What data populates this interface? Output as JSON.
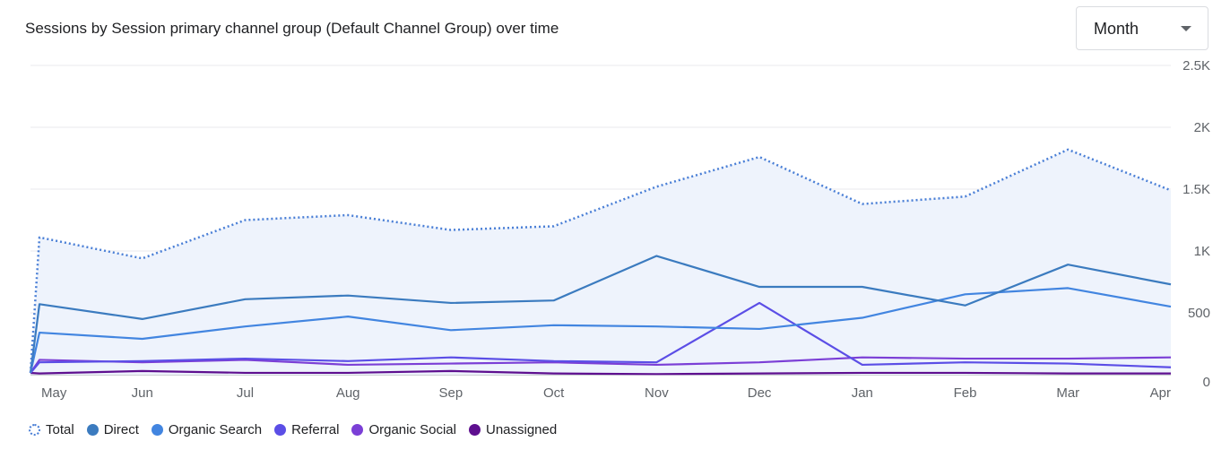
{
  "chart_data": {
    "type": "line",
    "title": "Sessions by Session primary channel group (Default Channel Group) over time",
    "categories": [
      "May",
      "Jun",
      "Jul",
      "Aug",
      "Sep",
      "Oct",
      "Nov",
      "Dec",
      "Jan",
      "Feb",
      "Mar",
      "Apr"
    ],
    "ylim": [
      0,
      2500
    ],
    "yticks": [
      0,
      500,
      1000,
      1500,
      2000,
      2500
    ],
    "ytick_labels": [
      "0",
      "500",
      "1K",
      "1.5K",
      "2K",
      "2.5K"
    ],
    "series": [
      {
        "name": "Total",
        "color": "#4a7fd6",
        "style": "dotted",
        "fill": "#eef3fc",
        "values": [
          1110,
          940,
          1250,
          1290,
          1170,
          1200,
          1520,
          1760,
          1380,
          1440,
          1820,
          1490
        ]
      },
      {
        "name": "Direct",
        "color": "#3b7bbf",
        "style": "solid",
        "values": [
          570,
          450,
          610,
          640,
          580,
          600,
          960,
          710,
          710,
          560,
          890,
          730
        ]
      },
      {
        "name": "Organic Search",
        "color": "#4285e0",
        "style": "solid",
        "values": [
          340,
          290,
          390,
          470,
          360,
          400,
          390,
          370,
          460,
          650,
          700,
          550
        ]
      },
      {
        "name": "Referral",
        "color": "#5b4ee6",
        "style": "solid",
        "values": [
          100,
          110,
          130,
          110,
          140,
          110,
          100,
          580,
          80,
          100,
          90,
          60
        ]
      },
      {
        "name": "Organic Social",
        "color": "#7b3fd6",
        "style": "solid",
        "values": [
          120,
          100,
          120,
          80,
          90,
          100,
          80,
          100,
          140,
          130,
          130,
          140
        ]
      },
      {
        "name": "Unassigned",
        "color": "#5e0f8f",
        "style": "solid",
        "values": [
          10,
          30,
          15,
          15,
          30,
          10,
          5,
          10,
          15,
          15,
          10,
          10
        ]
      }
    ]
  },
  "period_select": {
    "value": "Month"
  }
}
